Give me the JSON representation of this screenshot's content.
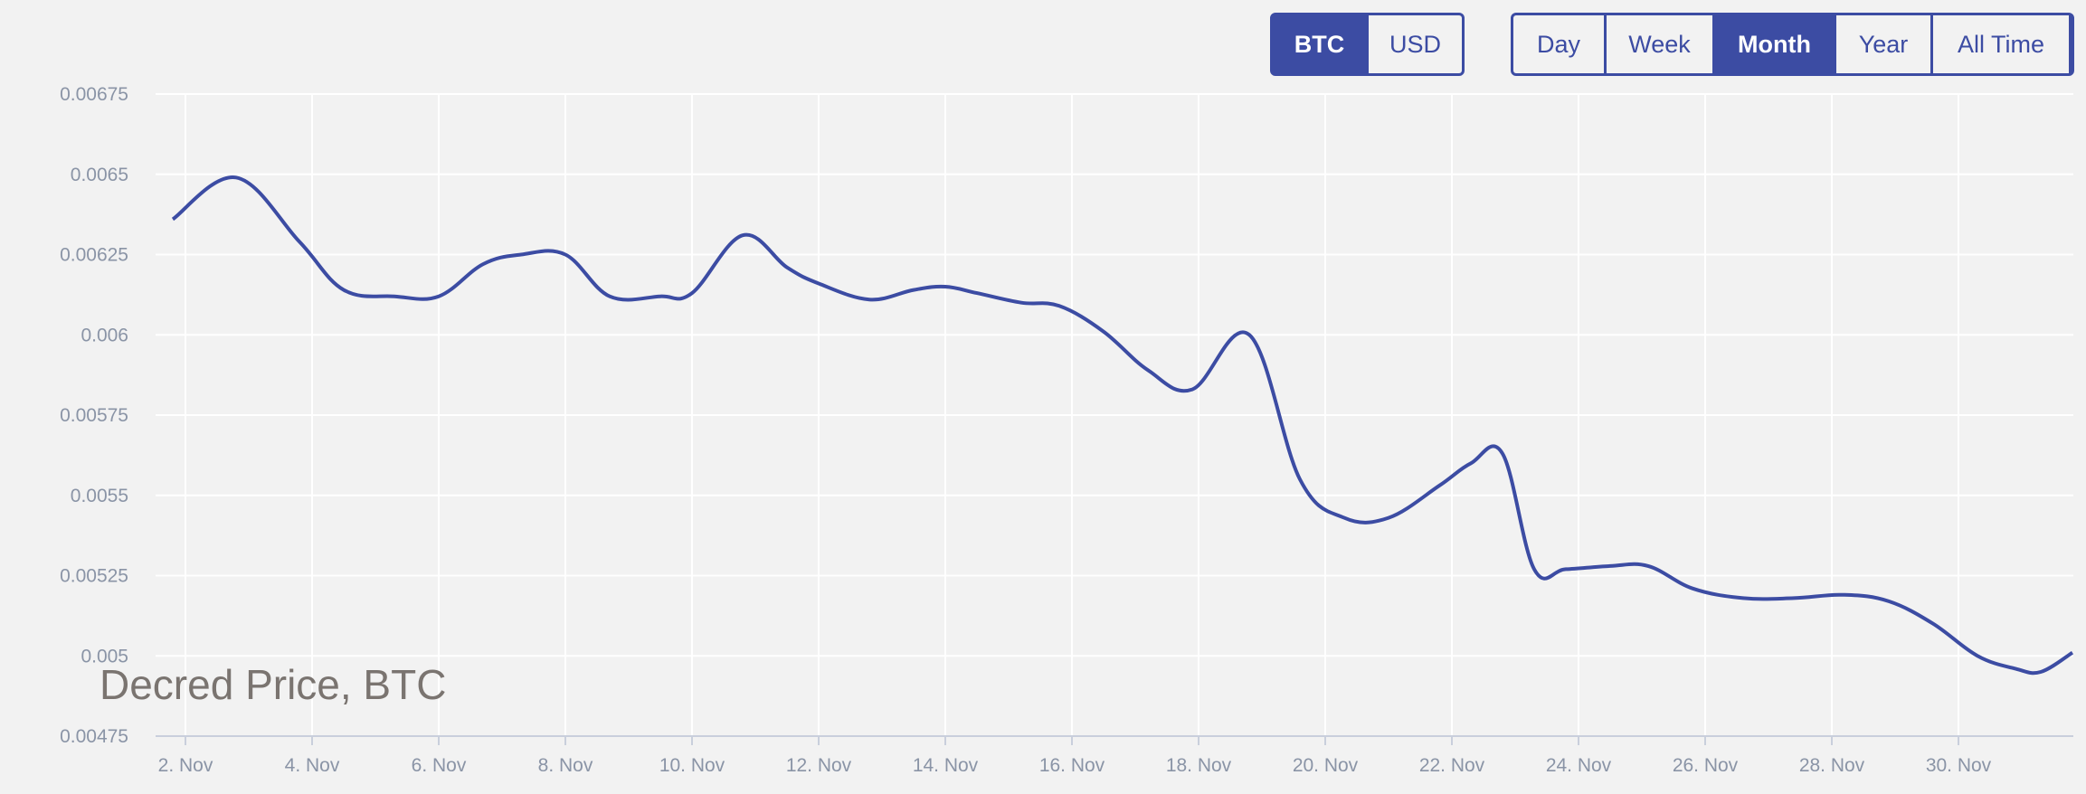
{
  "controls": {
    "currency": [
      {
        "label": "BTC",
        "active": true
      },
      {
        "label": "USD",
        "active": false
      }
    ],
    "range": [
      {
        "label": "Day",
        "active": false
      },
      {
        "label": "Week",
        "active": false
      },
      {
        "label": "Month",
        "active": true
      },
      {
        "label": "Year",
        "active": false
      },
      {
        "label": "All Time",
        "active": false
      }
    ]
  },
  "colors": {
    "accent": "#3c4ca3",
    "background": "#f2f2f2",
    "grid": "#ffffff",
    "tick_text": "#8a94a6",
    "title_text": "#7a7470"
  },
  "chart_data": {
    "type": "line",
    "title": "Decred Price, BTC",
    "xlabel": "",
    "ylabel": "",
    "grid": true,
    "x_ticks": [
      "2. Nov",
      "4. Nov",
      "6. Nov",
      "8. Nov",
      "10. Nov",
      "12. Nov",
      "14. Nov",
      "16. Nov",
      "18. Nov",
      "20. Nov",
      "22. Nov",
      "24. Nov",
      "26. Nov",
      "28. Nov",
      "30. Nov"
    ],
    "y_ticks": [
      "0.00475",
      "0.005",
      "0.00525",
      "0.0055",
      "0.00575",
      "0.006",
      "0.00625",
      "0.0065",
      "0.00675"
    ],
    "ylim": [
      0.00475,
      0.00675
    ],
    "xlim": [
      1.8,
      31.8
    ],
    "series": [
      {
        "x": [
          1.8,
          2.8,
          3.8,
          4.5,
          5.3,
          6.0,
          6.7,
          7.3,
          8.0,
          8.7,
          9.5,
          10.0,
          10.8,
          11.5,
          12.0,
          12.8,
          13.5,
          14.0,
          14.5,
          15.2,
          15.8,
          16.5,
          17.2,
          17.9,
          18.8,
          19.6,
          20.3,
          21.0,
          21.8,
          22.3,
          22.8,
          23.3,
          23.8,
          24.5,
          25.1,
          25.8,
          26.6,
          27.4,
          28.2,
          28.9,
          29.6,
          30.3,
          30.9,
          31.3,
          31.8
        ],
        "y": [
          0.00636,
          0.00649,
          0.00629,
          0.00614,
          0.00612,
          0.00612,
          0.00622,
          0.00625,
          0.00625,
          0.00612,
          0.00612,
          0.00613,
          0.00631,
          0.00621,
          0.00616,
          0.00611,
          0.00614,
          0.00615,
          0.00613,
          0.0061,
          0.00609,
          0.00601,
          0.00589,
          0.00583,
          0.006,
          0.00555,
          0.00543,
          0.00543,
          0.00553,
          0.0056,
          0.00563,
          0.00527,
          0.00527,
          0.00528,
          0.00528,
          0.00521,
          0.00518,
          0.00518,
          0.00519,
          0.00517,
          0.0051,
          0.005,
          0.00496,
          0.00495,
          0.00501
        ]
      }
    ]
  }
}
